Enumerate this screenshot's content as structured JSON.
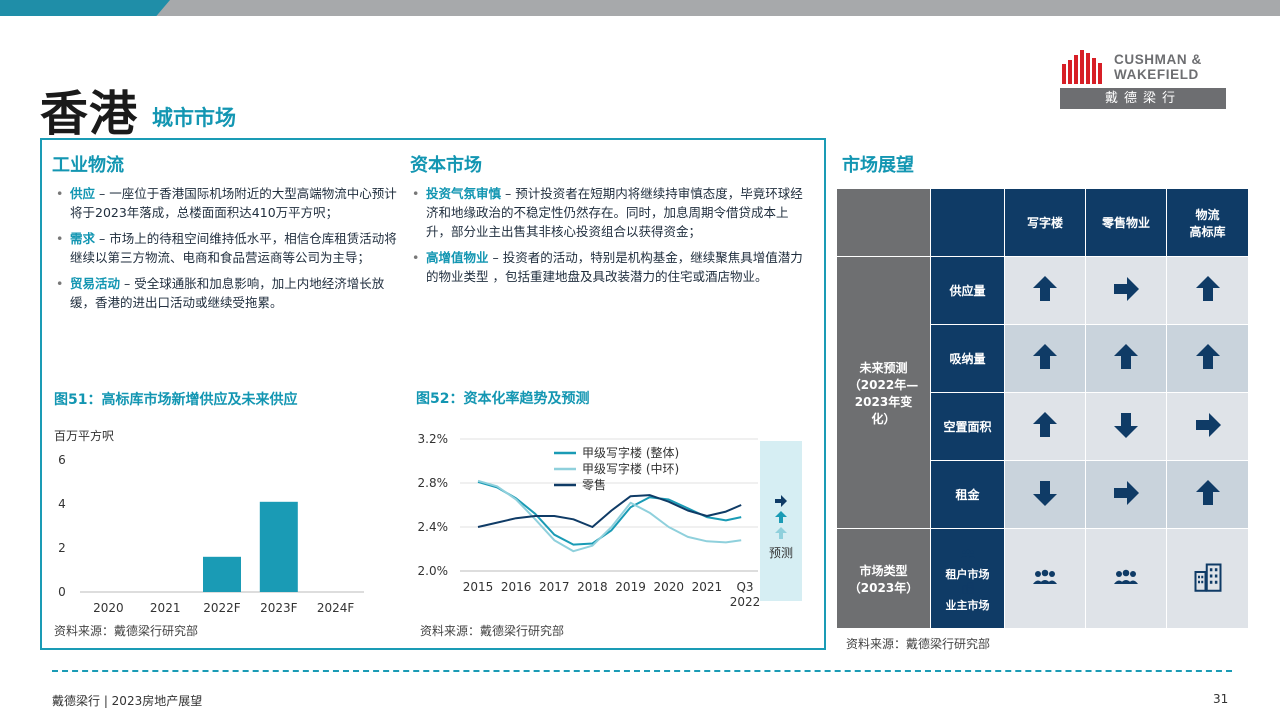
{
  "header": {
    "title": "香港",
    "subtitle": "城市市场"
  },
  "logo": {
    "line1": "CUSHMAN &",
    "line2": "WAKEFIELD",
    "chinese": "戴德梁行"
  },
  "industrial": {
    "heading": "工业物流",
    "bullets": [
      {
        "key": "供应",
        "text": " – 一座位于香港国际机场附近的大型高端物流中心预计将于2023年落成，总楼面面积达410万平方呎；"
      },
      {
        "key": "需求",
        "text": " – 市场上的待租空间维持低水平，相信仓库租赁活动将继续以第三方物流、电商和食品营运商等公司为主导；"
      },
      {
        "key": "贸易活动",
        "text": " – 受全球通胀和加息影响，加上内地经济增长放缓，香港的进出口活动或继续受拖累。"
      }
    ]
  },
  "capital": {
    "heading": "资本市场",
    "bullets": [
      {
        "key": "投资气氛审慎",
        "text": " – 预计投资者在短期内将继续持审慎态度，毕竟环球经济和地缘政治的不稳定性仍然存在。同时，加息周期令借贷成本上升，部分业主出售其非核心投资组合以获得资金；"
      },
      {
        "key": "高增值物业",
        "text": " – 投资者的活动，特别是机构基金，继续聚焦具增值潜力的物业类型 ，包括重建地盘及具改装潜力的住宅或酒店物业。"
      }
    ]
  },
  "fig51": {
    "title": "图51：高标库市场新增供应及未来供应",
    "unit": "百万平方呎",
    "source": "资料来源：戴德梁行研究部"
  },
  "fig52": {
    "title": "图52：资本化率趋势及预测",
    "forecast_label": "预测",
    "source": "资料来源：戴德梁行研究部"
  },
  "chart_data": [
    {
      "type": "bar",
      "title": "图51：高标库市场新增供应及未来供应",
      "ylabel": "百万平方呎",
      "categories": [
        "2020",
        "2021",
        "2022F",
        "2023F",
        "2024F"
      ],
      "values": [
        0,
        0,
        1.6,
        4.1,
        0
      ],
      "ylim": [
        0,
        6
      ],
      "yticks": [
        0,
        2,
        4,
        6
      ],
      "color": "#1a9bb5"
    },
    {
      "type": "line",
      "title": "图52：资本化率趋势及预测",
      "x_labels": [
        "2015",
        "2016",
        "2017",
        "2018",
        "2019",
        "2020",
        "2021",
        "Q3|2022"
      ],
      "ylim": [
        2.0,
        3.2
      ],
      "yticks": [
        "2.0%",
        "2.4%",
        "2.8%",
        "3.2%"
      ],
      "legend_position": "top",
      "series": [
        {
          "name": "甲级写字楼 (整体)",
          "color": "#1a9bb5",
          "x": [
            2015,
            2015.5,
            2016,
            2016.5,
            2017,
            2017.5,
            2018,
            2018.5,
            2019,
            2019.5,
            2020,
            2020.5,
            2021,
            2021.5,
            2021.9
          ],
          "y": [
            2.81,
            2.76,
            2.66,
            2.52,
            2.33,
            2.24,
            2.25,
            2.37,
            2.58,
            2.67,
            2.65,
            2.57,
            2.49,
            2.46,
            2.49
          ]
        },
        {
          "name": "甲级写字楼 (中环)",
          "color": "#8fd0dc",
          "x": [
            2015,
            2015.5,
            2016,
            2016.5,
            2017,
            2017.5,
            2018,
            2018.5,
            2019,
            2019.5,
            2020,
            2020.5,
            2021,
            2021.5,
            2021.9
          ],
          "y": [
            2.82,
            2.77,
            2.65,
            2.47,
            2.28,
            2.18,
            2.23,
            2.4,
            2.62,
            2.53,
            2.4,
            2.31,
            2.27,
            2.26,
            2.28
          ]
        },
        {
          "name": "零售",
          "color": "#0f3b66",
          "x": [
            2015,
            2015.5,
            2016,
            2016.5,
            2017,
            2017.5,
            2018,
            2018.5,
            2019,
            2019.5,
            2020,
            2020.5,
            2021,
            2021.5,
            2021.9
          ],
          "y": [
            2.4,
            2.44,
            2.48,
            2.5,
            2.5,
            2.47,
            2.4,
            2.55,
            2.68,
            2.69,
            2.63,
            2.55,
            2.5,
            2.54,
            2.6
          ]
        }
      ],
      "forecast_arrows": [
        "right",
        "up",
        "up"
      ]
    }
  ],
  "outlook": {
    "heading": "市场展望",
    "columns": [
      "写字楼",
      "零售物业",
      "物流|高标库"
    ],
    "group_label": "未来预测|（2022年—|2023年变|化）",
    "rows": [
      {
        "label": "供应量",
        "arrows": [
          "up",
          "right",
          "up"
        ]
      },
      {
        "label": "吸纳量",
        "arrows": [
          "up",
          "up",
          "up"
        ]
      },
      {
        "label": "空置面积",
        "arrows": [
          "up",
          "down",
          "right"
        ]
      },
      {
        "label": "租金",
        "arrows": [
          "down",
          "right",
          "up"
        ]
      }
    ],
    "type_label": "市场类型|（2023年）",
    "type_legend": [
      "租户市场",
      "业主市场"
    ],
    "types": [
      "tenant-icon",
      "tenant-icon",
      "landlord-icon"
    ],
    "source": "资料来源：戴德梁行研究部"
  },
  "footer": {
    "left": "戴德梁行 | 2023房地产展望",
    "page": "31"
  }
}
